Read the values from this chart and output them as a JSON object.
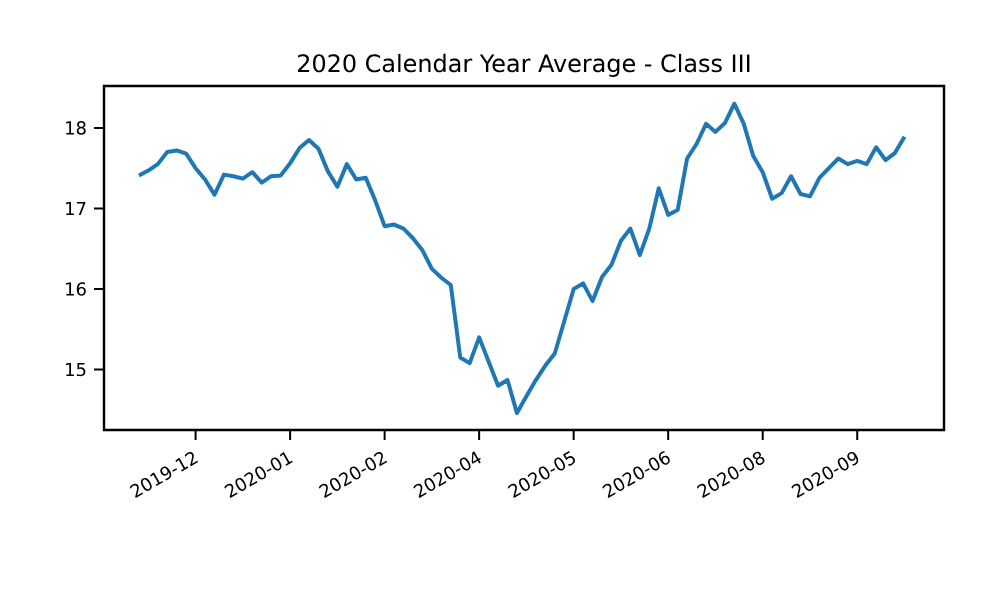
{
  "chart_data": {
    "type": "line",
    "title": "2020 Calendar Year Average - Class III",
    "categories": [
      null,
      null,
      null,
      null,
      null,
      null,
      "2019-12",
      null,
      null,
      null,
      null,
      null,
      null,
      null,
      null,
      null,
      "2020-01",
      null,
      null,
      null,
      null,
      null,
      null,
      null,
      null,
      null,
      "2020-02",
      null,
      null,
      null,
      null,
      null,
      null,
      null,
      null,
      null,
      "2020-04",
      null,
      null,
      null,
      null,
      null,
      null,
      null,
      null,
      null,
      "2020-05",
      null,
      null,
      null,
      null,
      null,
      null,
      null,
      null,
      null,
      "2020-06",
      null,
      null,
      null,
      null,
      null,
      null,
      null,
      null,
      null,
      "2020-08",
      null,
      null,
      null,
      null,
      null,
      null,
      null,
      null,
      null,
      "2020-09",
      null,
      null,
      null,
      null,
      null
    ],
    "series": [
      {
        "color": "#1f77b4",
        "values": [
          17.41,
          17.47,
          17.55,
          17.7,
          17.72,
          17.68,
          17.5,
          17.36,
          17.17,
          17.42,
          17.4,
          17.37,
          17.45,
          17.32,
          17.4,
          17.41,
          17.56,
          17.75,
          17.85,
          17.74,
          17.46,
          17.27,
          17.55,
          17.36,
          17.38,
          17.1,
          16.78,
          16.8,
          16.75,
          16.63,
          16.48,
          16.25,
          16.14,
          16.05,
          15.15,
          15.08,
          15.4,
          15.1,
          14.8,
          14.87,
          14.46,
          14.67,
          14.87,
          15.05,
          15.2,
          15.6,
          16.0,
          16.07,
          15.85,
          16.15,
          16.3,
          16.6,
          16.75,
          16.42,
          16.75,
          17.25,
          16.92,
          16.98,
          17.62,
          17.8,
          18.05,
          17.95,
          18.06,
          18.3,
          18.05,
          17.65,
          17.45,
          17.12,
          17.19,
          17.4,
          17.18,
          17.15,
          17.38,
          17.5,
          17.62,
          17.55,
          17.59,
          17.55,
          17.76,
          17.6,
          17.69,
          17.89
        ]
      }
    ],
    "ylim": [
      14.25,
      18.52
    ],
    "yticks": [
      15,
      16,
      17,
      18
    ]
  }
}
